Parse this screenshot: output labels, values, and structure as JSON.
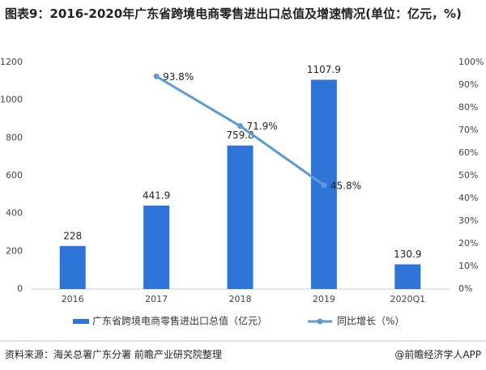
{
  "chart_data": {
    "type": "bar",
    "title": "图表9：2016-2020年广东省跨境电商零售进出口总值及增速情况(单位：亿元，%)",
    "categories": [
      "2016",
      "2017",
      "2018",
      "2019",
      "2020Q1"
    ],
    "series": [
      {
        "name": "广东省跨境电商零售进出口总值（亿元）",
        "color": "#2f75d8",
        "type": "bar",
        "values": [
          228,
          441.9,
          759.8,
          1107.9,
          130.9
        ]
      },
      {
        "name": "同比增长（%）",
        "color": "#5b9bd5",
        "type": "line",
        "axis": "y2",
        "values": [
          null,
          93.8,
          71.9,
          45.8,
          null
        ],
        "value_labels": [
          null,
          "93.8%",
          "71.9%",
          "45.8%",
          null
        ]
      }
    ],
    "ylim": [
      0,
      1200
    ],
    "yticks": [
      0,
      200,
      400,
      600,
      800,
      1000,
      1200
    ],
    "y2lim": [
      0,
      100
    ],
    "y2ticks": [
      {
        "value": 0,
        "label": "0%"
      },
      {
        "value": 10,
        "label": "10%"
      },
      {
        "value": 20,
        "label": "20%"
      },
      {
        "value": 30,
        "label": "30%"
      },
      {
        "value": 40,
        "label": "40%"
      },
      {
        "value": 50,
        "label": "50%"
      },
      {
        "value": 60,
        "label": "60%"
      },
      {
        "value": 70,
        "label": "70%"
      },
      {
        "value": 80,
        "label": "80%"
      },
      {
        "value": 90,
        "label": "90%"
      },
      {
        "value": 100,
        "label": "100%"
      }
    ],
    "legend": "bottom",
    "source": "资料来源：海关总署广东分署 前瞻产业研究院整理",
    "credit": "@前瞻经济学人APP"
  }
}
